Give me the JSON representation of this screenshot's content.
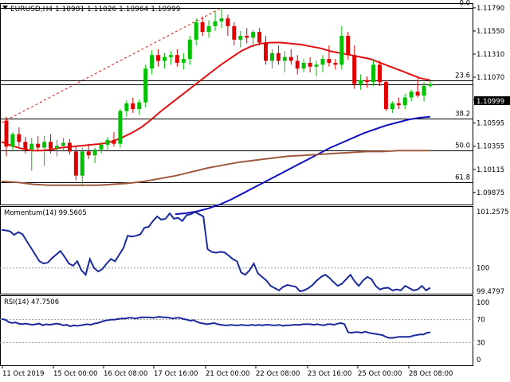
{
  "header": {
    "symbol_line": "EURUSD,H4  1.10981 1.11026 1.10964 1.10999"
  },
  "price_axis": {
    "ticks": [
      "1.11790",
      "1.11550",
      "1.11310",
      "1.11070",
      "1.10835",
      "1.10595",
      "1.10355",
      "1.10115",
      "1.09875"
    ],
    "current_price_label": "1.10999"
  },
  "fib_levels": [
    {
      "label": "0.0",
      "price": 1.1179
    },
    {
      "label": "23.6",
      "price": 1.1104
    },
    {
      "label": "38.2",
      "price": 1.1064
    },
    {
      "label": "50.0",
      "price": 1.1031
    },
    {
      "label": "61.8",
      "price": 1.0998
    }
  ],
  "time_axis": {
    "labels": [
      "11 Oct 2019",
      "15 Oct 00:00",
      "16 Oct 08:00",
      "17 Oct 16:00",
      "21 Oct 00:00",
      "22 Oct 08:00",
      "23 Oct 16:00",
      "25 Oct 00:00",
      "28 Oct 08:00"
    ]
  },
  "momentum_panel": {
    "label": "Momentum(14) 99.5605",
    "scale_labels": [
      "101.2575",
      "100",
      "99.4797"
    ],
    "values": [
      100.85,
      100.84,
      100.82,
      100.74,
      100.8,
      100.75,
      100.6,
      100.45,
      100.3,
      100.15,
      100.1,
      100.12,
      100.22,
      100.3,
      100.38,
      100.25,
      100.1,
      100.05,
      100.15,
      99.95,
      99.85,
      100.2,
      100.0,
      99.92,
      99.98,
      100.1,
      100.2,
      100.15,
      100.3,
      100.45,
      100.72,
      100.7,
      100.72,
      100.75,
      100.9,
      100.92,
      101.05,
      101.15,
      101.08,
      101.1,
      101.22,
      101.1,
      101.12,
      101.05,
      101.18,
      101.2,
      101.25,
      101.2,
      101.15,
      100.42,
      100.36,
      100.34,
      100.36,
      100.35,
      100.28,
      100.2,
      100.15,
      99.9,
      99.85,
      99.95,
      100.1,
      99.88,
      99.8,
      99.72,
      99.6,
      99.55,
      99.5,
      99.58,
      99.62,
      99.6,
      99.58,
      99.48,
      99.5,
      99.55,
      99.62,
      99.72,
      99.8,
      99.85,
      99.78,
      99.68,
      99.6,
      99.65,
      99.75,
      99.85,
      99.7,
      99.6,
      99.72,
      99.8,
      99.75,
      99.6,
      99.52,
      99.55,
      99.56,
      99.5,
      99.52,
      99.5,
      99.6,
      99.55,
      99.5,
      99.52,
      99.6,
      99.5,
      99.56
    ]
  },
  "rsi_panel": {
    "label": "RSI(14) 47.7506",
    "scale_labels": [
      "100",
      "70",
      "30",
      "0"
    ],
    "values": [
      71,
      70,
      66,
      64,
      65,
      63,
      62,
      63,
      62,
      61,
      62,
      63,
      60,
      62,
      61,
      62,
      63,
      62,
      60,
      61,
      58,
      60,
      59,
      60,
      61,
      62,
      61,
      63,
      64,
      66,
      68,
      69,
      70,
      70,
      71,
      72,
      72,
      73,
      73,
      72,
      73,
      74,
      74,
      74,
      73,
      74,
      75,
      74,
      74,
      73,
      72,
      73,
      73,
      71,
      70,
      68,
      69,
      66,
      64,
      63,
      62,
      63,
      64,
      62,
      61,
      60,
      60,
      61,
      60,
      60,
      61,
      60,
      60,
      61,
      60,
      61,
      60,
      61,
      61,
      60,
      60,
      61,
      59,
      60,
      60,
      61,
      61,
      61,
      62,
      62,
      62,
      61,
      62,
      61,
      60,
      62,
      62,
      61,
      63,
      64,
      62,
      48,
      47,
      48,
      48,
      47,
      49,
      47,
      46,
      45,
      44,
      43,
      40,
      38,
      38,
      39,
      40,
      40,
      40,
      40,
      42,
      43,
      44,
      44,
      47,
      47.75
    ]
  },
  "chart_data": [
    {
      "type": "candlestick",
      "title": "EURUSD,H4",
      "current_price": 1.10999,
      "ylim": [
        1.0975,
        1.1183
      ],
      "x_labels": [
        "11 Oct 2019",
        "15 Oct 00:00",
        "16 Oct 08:00",
        "17 Oct 16:00",
        "21 Oct 00:00",
        "22 Oct 08:00",
        "23 Oct 16:00",
        "25 Oct 00:00",
        "28 Oct 08:00"
      ],
      "candles": [
        [
          1.1062,
          1.1066,
          1.1025,
          1.1035
        ],
        [
          1.1035,
          1.105,
          1.103,
          1.1048
        ],
        [
          1.1048,
          1.1055,
          1.1035,
          1.104
        ],
        [
          1.104,
          1.1045,
          1.1028,
          1.1032
        ],
        [
          1.1032,
          1.1044,
          1.101,
          1.1038
        ],
        [
          1.1038,
          1.1046,
          1.103,
          1.1034
        ],
        [
          1.1034,
          1.1046,
          1.1015,
          1.104
        ],
        [
          1.104,
          1.1048,
          1.1028,
          1.1033
        ],
        [
          1.1033,
          1.1042,
          1.1025,
          1.1036
        ],
        [
          1.1036,
          1.1044,
          1.103,
          1.1039
        ],
        [
          1.1039,
          1.1043,
          1.1027,
          1.103
        ],
        [
          1.103,
          1.1035,
          1.1,
          1.1005
        ],
        [
          1.1005,
          1.1034,
          1.0995,
          1.103
        ],
        [
          1.103,
          1.1038,
          1.1022,
          1.1026
        ],
        [
          1.1026,
          1.1034,
          1.1018,
          1.1032
        ],
        [
          1.1032,
          1.104,
          1.1028,
          1.1037
        ],
        [
          1.1037,
          1.1045,
          1.1032,
          1.1042
        ],
        [
          1.1042,
          1.105,
          1.1035,
          1.1038
        ],
        [
          1.1038,
          1.1074,
          1.1034,
          1.1072
        ],
        [
          1.1072,
          1.1083,
          1.1066,
          1.108
        ],
        [
          1.108,
          1.1086,
          1.107,
          1.1074
        ],
        [
          1.1074,
          1.1084,
          1.1068,
          1.1081
        ],
        [
          1.1081,
          1.112,
          1.1076,
          1.1116
        ],
        [
          1.1116,
          1.1135,
          1.111,
          1.113
        ],
        [
          1.113,
          1.1136,
          1.1118,
          1.1124
        ],
        [
          1.1124,
          1.1132,
          1.1116,
          1.1128
        ],
        [
          1.1128,
          1.1134,
          1.112,
          1.113
        ],
        [
          1.113,
          1.1136,
          1.1118,
          1.1122
        ],
        [
          1.1122,
          1.1132,
          1.1115,
          1.1126
        ],
        [
          1.1126,
          1.115,
          1.112,
          1.1146
        ],
        [
          1.1146,
          1.1168,
          1.114,
          1.1164
        ],
        [
          1.1164,
          1.117,
          1.115,
          1.1154
        ],
        [
          1.1154,
          1.1166,
          1.1148,
          1.116
        ],
        [
          1.116,
          1.1176,
          1.1155,
          1.1165
        ],
        [
          1.1165,
          1.1179,
          1.1158,
          1.1168
        ],
        [
          1.1168,
          1.1172,
          1.115,
          1.116
        ],
        [
          1.116,
          1.1164,
          1.114,
          1.1146
        ],
        [
          1.1146,
          1.1155,
          1.1138,
          1.115
        ],
        [
          1.115,
          1.1158,
          1.1142,
          1.1148
        ],
        [
          1.1148,
          1.1156,
          1.1138,
          1.1154
        ],
        [
          1.1154,
          1.1158,
          1.114,
          1.1143
        ],
        [
          1.1143,
          1.115,
          1.112,
          1.1124
        ],
        [
          1.1124,
          1.1136,
          1.1116,
          1.1132
        ],
        [
          1.1132,
          1.114,
          1.112,
          1.1124
        ],
        [
          1.1124,
          1.1134,
          1.1112,
          1.1128
        ],
        [
          1.1128,
          1.1136,
          1.112,
          1.1124
        ],
        [
          1.1124,
          1.113,
          1.111,
          1.1116
        ],
        [
          1.1116,
          1.1126,
          1.1112,
          1.1122
        ],
        [
          1.1122,
          1.1128,
          1.1112,
          1.1118
        ],
        [
          1.1118,
          1.1124,
          1.1108,
          1.112
        ],
        [
          1.112,
          1.113,
          1.1112,
          1.1126
        ],
        [
          1.1126,
          1.114,
          1.1118,
          1.1122
        ],
        [
          1.1122,
          1.1126,
          1.1115,
          1.112
        ],
        [
          1.112,
          1.116,
          1.1115,
          1.115
        ],
        [
          1.115,
          1.1154,
          1.1125,
          1.113
        ],
        [
          1.113,
          1.114,
          1.1095,
          1.11
        ],
        [
          1.11,
          1.111,
          1.1094,
          1.1104
        ],
        [
          1.1104,
          1.1108,
          1.1096,
          1.1102
        ],
        [
          1.1102,
          1.1125,
          1.1098,
          1.112
        ],
        [
          1.112,
          1.1124,
          1.1098,
          1.1102
        ],
        [
          1.1102,
          1.1104,
          1.1072,
          1.1074
        ],
        [
          1.1074,
          1.1082,
          1.107,
          1.108
        ],
        [
          1.108,
          1.1086,
          1.1074,
          1.1078
        ],
        [
          1.1078,
          1.109,
          1.1074,
          1.1086
        ],
        [
          1.1086,
          1.1094,
          1.1082,
          1.1092
        ],
        [
          1.1092,
          1.1106,
          1.1086,
          1.1088
        ],
        [
          1.1088,
          1.1102,
          1.1082,
          1.1098
        ],
        [
          1.1098,
          1.1103,
          1.1096,
          1.11
        ]
      ],
      "series": [
        {
          "name": "",
          "color": "#e01010",
          "values": [
            1.104,
            1.1036,
            1.1033,
            1.1031,
            1.1031,
            1.1032,
            1.1034,
            1.1035,
            1.1036,
            1.1037,
            1.1038,
            1.104,
            1.1044,
            1.1049,
            1.1055,
            1.1063,
            1.1072,
            1.108,
            1.1088,
            1.1096,
            1.1104,
            1.1112,
            1.112,
            1.1127,
            1.1134,
            1.1139,
            1.1142,
            1.1143,
            1.1143,
            1.1142,
            1.1141,
            1.1139,
            1.1137,
            1.1134,
            1.1132,
            1.113,
            1.1128,
            1.1126,
            1.1122,
            1.1118,
            1.1114,
            1.111,
            1.1106,
            1.1104
          ]
        },
        {
          "name": "",
          "color": "#1010c0",
          "values": [
            1.0965,
            1.0966,
            1.0968,
            1.0971,
            1.0975,
            1.098,
            1.0986,
            1.0992,
            1.0998,
            1.1004,
            1.101,
            1.1016,
            1.1022,
            1.1028,
            1.1034,
            1.1039,
            1.1044,
            1.1049,
            1.1053,
            1.1057,
            1.106,
            1.1063,
            1.1065,
            1.1066
          ]
        },
        {
          "name": "",
          "color": "#a05a3c",
          "values": [
            1.0999,
            1.0998,
            1.0996,
            1.0995,
            1.0995,
            1.0995,
            1.0995,
            1.0996,
            1.0997,
            1.0999,
            1.1002,
            1.1005,
            1.1009,
            1.1013,
            1.1016,
            1.1019,
            1.1021,
            1.1023,
            1.1025,
            1.1026,
            1.1027,
            1.1028,
            1.1029,
            1.103,
            1.103,
            1.1031,
            1.1031,
            1.1031
          ]
        }
      ],
      "bull_color": "#00c000",
      "bear_color": "#e00000"
    },
    {
      "type": "line",
      "title": "Momentum(14) 99.5605",
      "ylim": [
        99.4797,
        101.2575
      ],
      "levels": [
        100
      ],
      "color": "#1a2a9a"
    },
    {
      "type": "line",
      "title": "RSI(14) 47.7506",
      "ylim": [
        0,
        100
      ],
      "levels": [
        70,
        30
      ],
      "color": "#1a2a9a"
    }
  ]
}
